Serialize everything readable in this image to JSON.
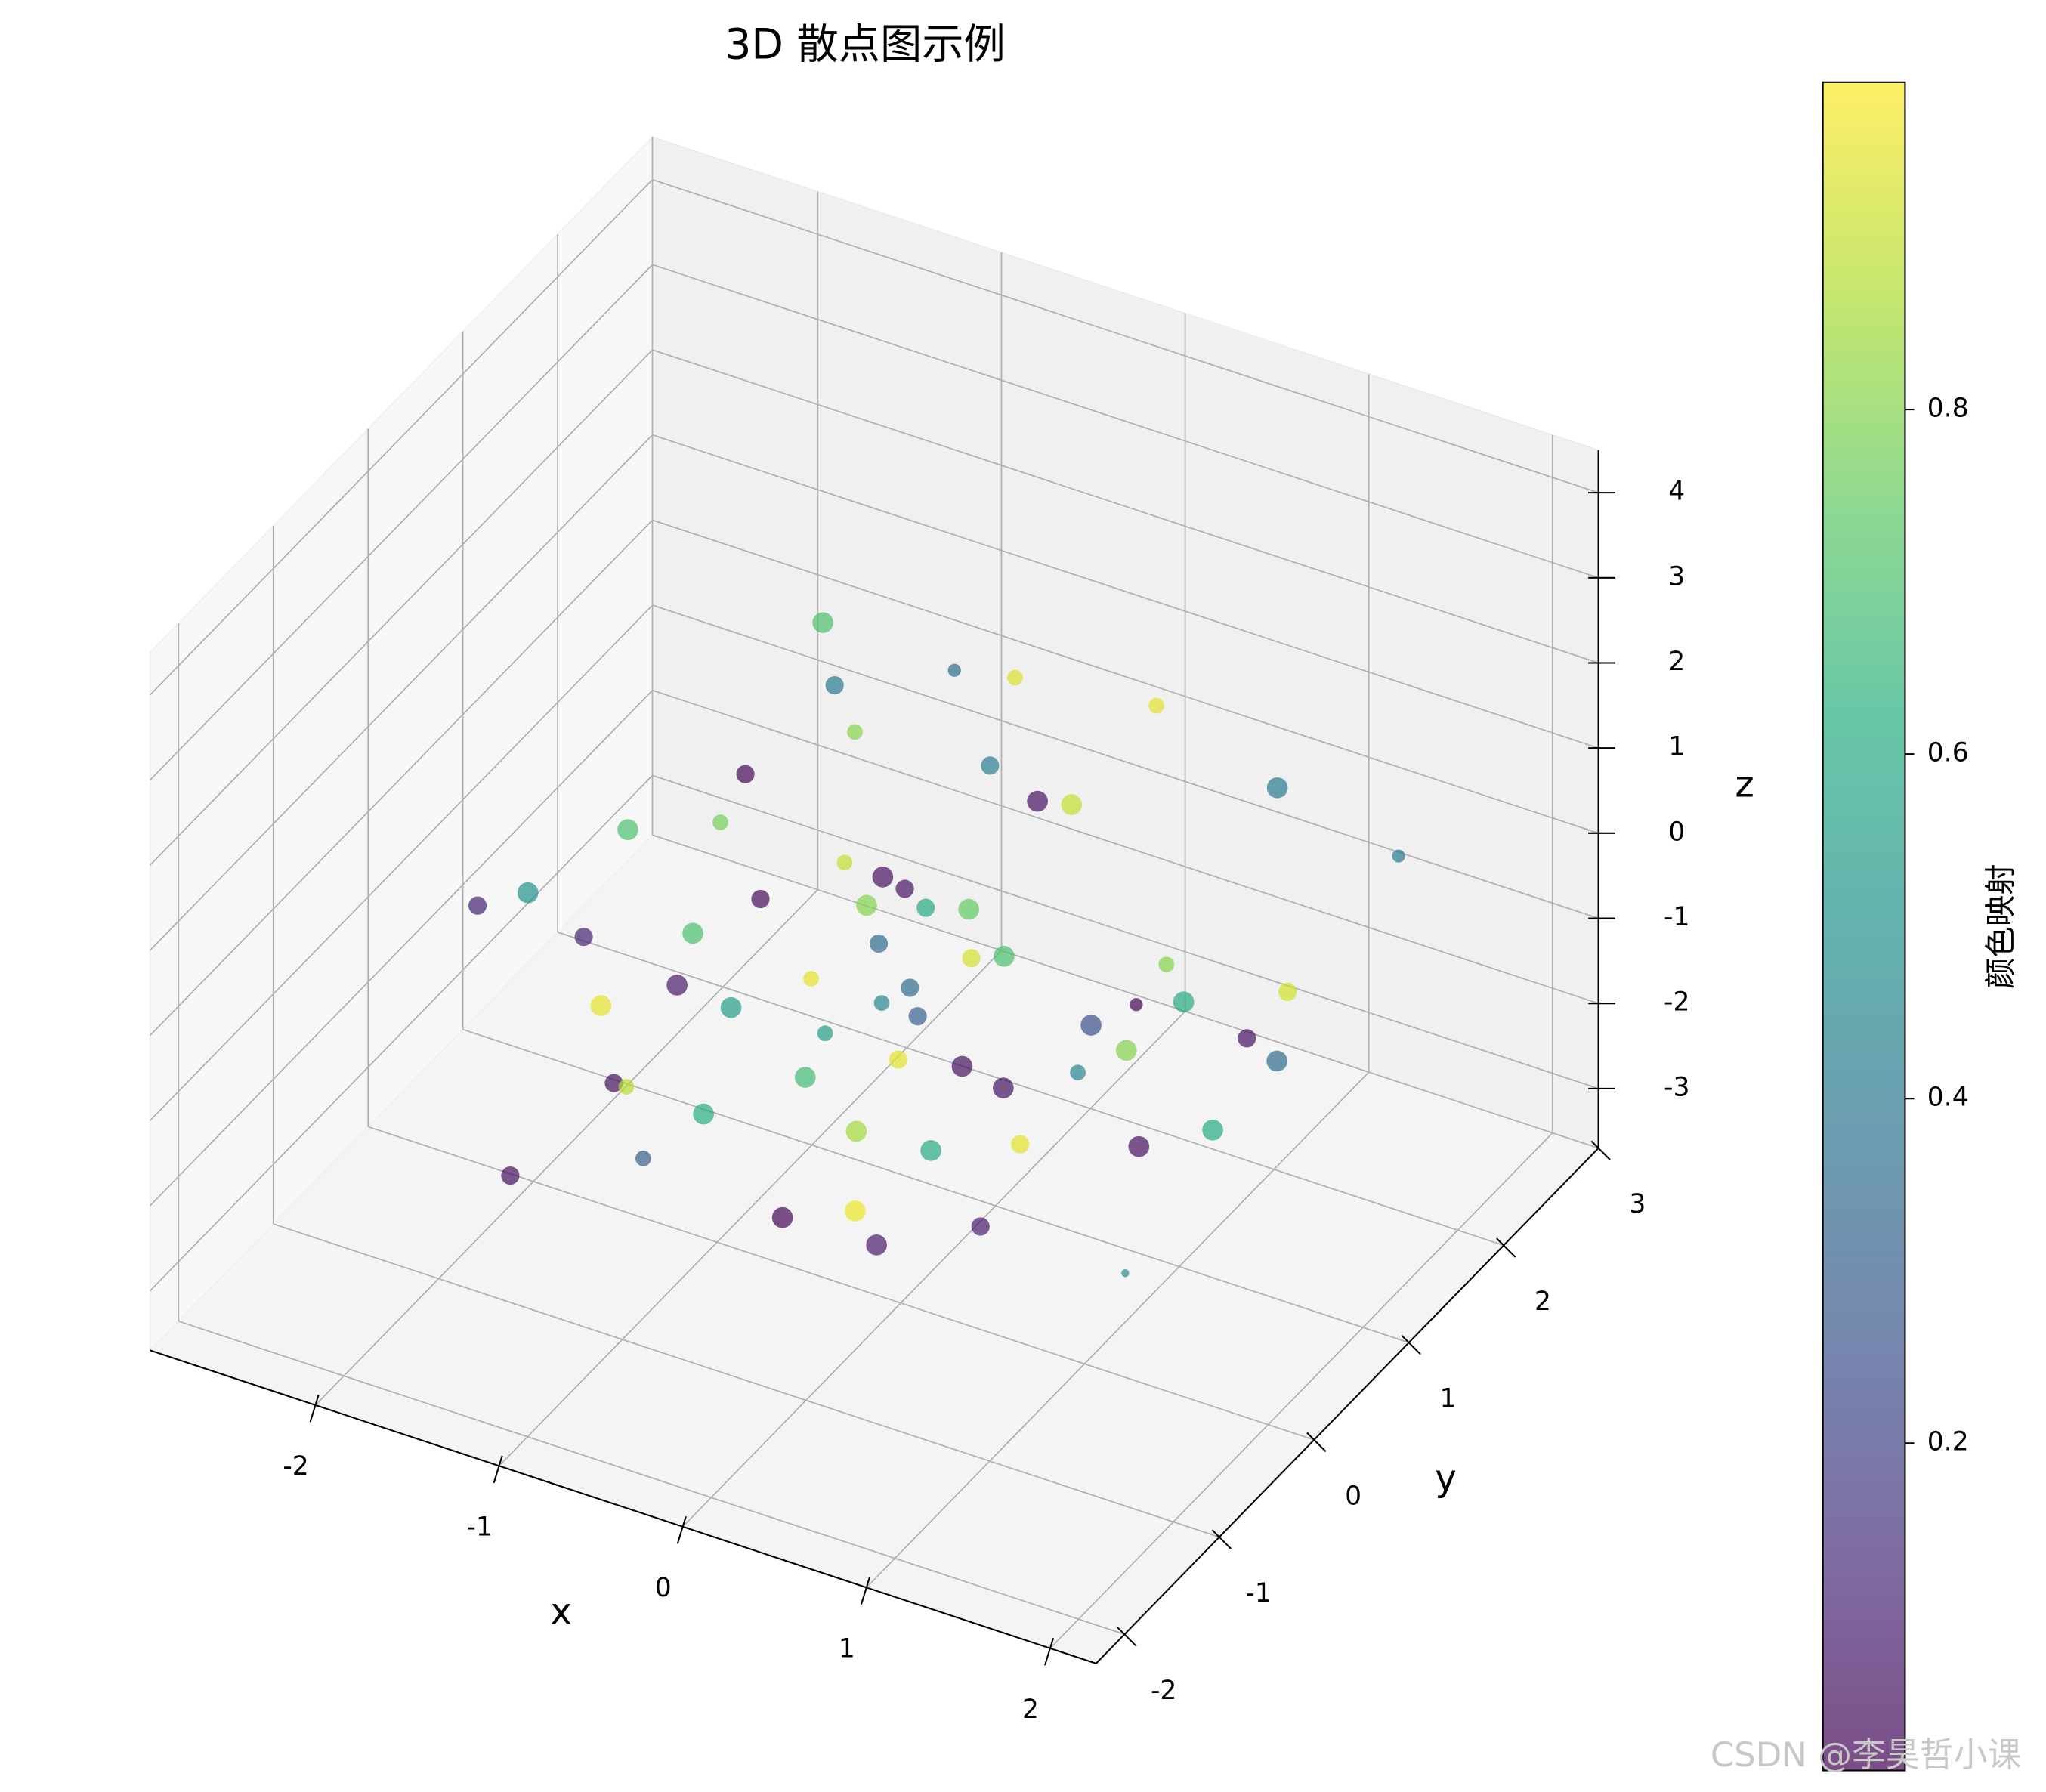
{
  "chart_data": {
    "type": "scatter3d",
    "title": "3D 散点图示例",
    "xlabel": "x",
    "ylabel": "y",
    "zlabel": "z",
    "x": [
      -0.94,
      -0.36,
      -0.74,
      -0.41,
      0.36,
      -0.25,
      -0.03,
      -0.33,
      -0.03,
      0.93,
      0.76,
      1.42,
      -0.97,
      -1.24,
      -1.53,
      -2.03,
      -1.28,
      0.16,
      -1.01,
      -1.08,
      -1.21,
      -1.39,
      0.33,
      -0.38,
      0.37,
      -1.41,
      0.82,
      -0.39,
      -0.96,
      -0.6,
      -1.44,
      0.05,
      -1.52,
      1.81,
      0.97,
      0.25,
      1.11,
      1.79,
      0.25,
      0.93,
      1.59,
      -0.53,
      -0.52,
      -0.53,
      0.85,
      0.3,
      0.19,
      -0.3,
      -0.5,
      0.68,
      0.65,
      2.07,
      1.44,
      -1.61,
      -0.37,
      0.13,
      0.01,
      0.9,
      0.95,
      1.48,
      -0.67,
      -0.72,
      0.35,
      -0.62
    ],
    "y": [
      1,
      0,
      2,
      2,
      2,
      0,
      1,
      -1,
      1.5,
      0,
      2.5,
      2.5,
      -1,
      0.5,
      -1.5,
      0,
      1,
      -0.5,
      2,
      1.5,
      -1,
      0.5,
      -1,
      1,
      0,
      2.5,
      -0.5,
      1.5,
      -0.5,
      -2,
      1,
      0,
      2,
      -1.5,
      0.5,
      2.5,
      1.5,
      0.5,
      2,
      1,
      1,
      -2,
      0,
      1,
      -1,
      0.5,
      1.5,
      -1.5,
      0.5,
      -1,
      0,
      -1.5,
      0.5,
      -1,
      -2,
      -1.5,
      -0.5,
      -2,
      -1,
      -0.5,
      0.5,
      -1.5,
      -0.5,
      1
    ],
    "z": [
      2.48,
      3.3,
      0.92,
      1.07,
      1.29,
      2.83,
      1.45,
      3.42,
      0.46,
      2.82,
      0.04,
      -0.29,
      2.31,
      0.49,
      1.59,
      -0.33,
      -1.01,
      1.99,
      -1.84,
      -1.01,
      0.88,
      -0.92,
      2.35,
      -0.47,
      1.19,
      -3.34,
      1.53,
      -1.64,
      -0.08,
      1.65,
      -2.4,
      0.04,
      -3.26,
      2.57,
      -0.61,
      -2.84,
      -1.51,
      -0.15,
      -2.3,
      -0.2,
      -0.05,
      0.79,
      -1.42,
      -2.36,
      0.83,
      -1.53,
      -2.57,
      0.02,
      -2.61,
      -0.28,
      -1.37,
      1.33,
      -1.21,
      -2.21,
      0.02,
      -0.89,
      -2.04,
      -0.09,
      -0.98,
      -1.72,
      -1.58,
      0.04,
      0.49,
      -1.76
    ],
    "color_values": [
      0.7,
      0.4,
      0.35,
      0.93,
      0.95,
      0.8,
      0.42,
      0.02,
      0.05,
      0.9,
      0.4,
      0.4,
      0.7,
      0.78,
      0.1,
      0.5,
      0.03,
      0.05,
      0.05,
      0.9,
      0.1,
      0.7,
      0.8,
      0.6,
      0.75,
      0.35,
      0.7,
      0.92,
      0.08,
      0.95,
      0.55,
      0.35,
      0.95,
      0.25,
      0.8,
      0.6,
      0.05,
      0.35,
      0.0,
      0.8,
      0.92,
      0.05,
      0.68,
      0.95,
      0.05,
      0.05,
      0.45,
      0.62,
      0.85,
      0.6,
      0.95,
      0.05,
      0.6,
      0.05,
      0.3,
      0.02,
      0.97,
      0.08,
      0.08,
      0.45,
      0.55,
      0.88,
      0.3,
      0.45
    ],
    "sizes": [
      64,
      49,
      25,
      36,
      36,
      36,
      49,
      49,
      64,
      64,
      64,
      25,
      64,
      36,
      49,
      64,
      49,
      64,
      49,
      36,
      49,
      64,
      64,
      49,
      64,
      49,
      64,
      49,
      64,
      64,
      64,
      49,
      36,
      64,
      64,
      64,
      49,
      64,
      25,
      36,
      49,
      49,
      64,
      49,
      64,
      64,
      36,
      64,
      64,
      64,
      49,
      64,
      64,
      49,
      36,
      64,
      64,
      64,
      49,
      9,
      36,
      36,
      49,
      36
    ],
    "colormap": "viridis",
    "alpha": 0.7,
    "xlim": [
      -2.9,
      2.25
    ],
    "ylim": [
      -2.3,
      3.0
    ],
    "zlim": [
      -3.7,
      4.5
    ],
    "xticks": [
      -2,
      -1,
      0,
      1,
      2
    ],
    "yticks": [
      -2,
      -1,
      0,
      1,
      2,
      3
    ],
    "zticks": [
      -3,
      -2,
      -1,
      0,
      1,
      2,
      3,
      4
    ],
    "grid": true,
    "colorbar": {
      "label": "颜色映射",
      "clim": [
        0.01,
        0.99
      ],
      "ticks": [
        0.2,
        0.4,
        0.6,
        0.8
      ]
    }
  },
  "watermark": "CSDN @李昊哲小课"
}
